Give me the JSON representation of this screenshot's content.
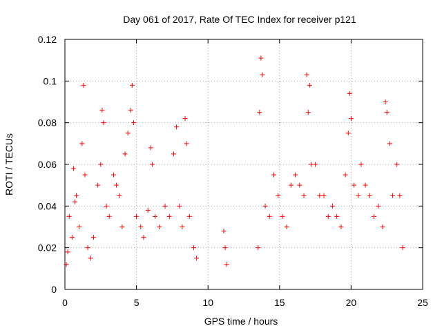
{
  "chart_data": {
    "type": "scatter",
    "title": "Day 061 of 2017, Rate Of TEC Index for receiver p121",
    "xlabel": "GPS time / hours",
    "ylabel": "ROTI / TECUs",
    "xlim": [
      0,
      25
    ],
    "ylim": [
      0,
      0.12
    ],
    "xticks": [
      0,
      5,
      10,
      15,
      20,
      25
    ],
    "yticks": [
      0,
      0.02,
      0.04,
      0.06,
      0.08,
      0.1,
      0.12
    ],
    "xtick_labels": [
      "0",
      "5",
      "10",
      "15",
      "20",
      "25"
    ],
    "ytick_labels": [
      "0",
      "0.02",
      "0.04",
      "0.06",
      "0.08",
      "0.1",
      "0.12"
    ],
    "grid": true,
    "marker": "+",
    "color": "#ff0000",
    "series": [
      {
        "name": "ROTI",
        "points": [
          [
            0.1,
            0.012
          ],
          [
            0.2,
            0.018
          ],
          [
            0.3,
            0.035
          ],
          [
            0.5,
            0.025
          ],
          [
            0.6,
            0.058
          ],
          [
            0.7,
            0.042
          ],
          [
            0.8,
            0.045
          ],
          [
            1.0,
            0.03
          ],
          [
            1.2,
            0.07
          ],
          [
            1.3,
            0.098
          ],
          [
            1.4,
            0.055
          ],
          [
            1.6,
            0.02
          ],
          [
            1.8,
            0.015
          ],
          [
            2.0,
            0.025
          ],
          [
            2.3,
            0.05
          ],
          [
            2.5,
            0.06
          ],
          [
            2.6,
            0.086
          ],
          [
            2.7,
            0.08
          ],
          [
            2.9,
            0.04
          ],
          [
            3.1,
            0.035
          ],
          [
            3.4,
            0.055
          ],
          [
            3.6,
            0.05
          ],
          [
            3.8,
            0.045
          ],
          [
            4.0,
            0.03
          ],
          [
            4.2,
            0.065
          ],
          [
            4.4,
            0.075
          ],
          [
            4.6,
            0.086
          ],
          [
            4.7,
            0.098
          ],
          [
            4.8,
            0.08
          ],
          [
            5.0,
            0.035
          ],
          [
            5.3,
            0.03
          ],
          [
            5.5,
            0.025
          ],
          [
            5.8,
            0.038
          ],
          [
            6.0,
            0.068
          ],
          [
            6.1,
            0.06
          ],
          [
            6.3,
            0.035
          ],
          [
            6.6,
            0.03
          ],
          [
            7.0,
            0.04
          ],
          [
            7.3,
            0.035
          ],
          [
            7.6,
            0.065
          ],
          [
            7.8,
            0.078
          ],
          [
            8.0,
            0.04
          ],
          [
            8.2,
            0.03
          ],
          [
            8.4,
            0.082
          ],
          [
            8.5,
            0.07
          ],
          [
            8.7,
            0.035
          ],
          [
            9.0,
            0.02
          ],
          [
            9.2,
            0.015
          ],
          [
            11.1,
            0.028
          ],
          [
            11.2,
            0.02
          ],
          [
            11.3,
            0.012
          ],
          [
            13.5,
            0.02
          ],
          [
            13.6,
            0.085
          ],
          [
            13.7,
            0.111
          ],
          [
            13.8,
            0.103
          ],
          [
            14.0,
            0.04
          ],
          [
            14.3,
            0.035
          ],
          [
            14.6,
            0.055
          ],
          [
            14.9,
            0.045
          ],
          [
            15.2,
            0.035
          ],
          [
            15.5,
            0.03
          ],
          [
            15.8,
            0.05
          ],
          [
            16.1,
            0.055
          ],
          [
            16.4,
            0.05
          ],
          [
            16.7,
            0.045
          ],
          [
            16.9,
            0.103
          ],
          [
            17.0,
            0.085
          ],
          [
            17.1,
            0.098
          ],
          [
            17.2,
            0.06
          ],
          [
            17.5,
            0.06
          ],
          [
            17.8,
            0.045
          ],
          [
            18.1,
            0.045
          ],
          [
            18.4,
            0.035
          ],
          [
            18.7,
            0.04
          ],
          [
            19.0,
            0.035
          ],
          [
            19.3,
            0.03
          ],
          [
            19.6,
            0.055
          ],
          [
            19.8,
            0.075
          ],
          [
            19.9,
            0.094
          ],
          [
            20.0,
            0.082
          ],
          [
            20.2,
            0.05
          ],
          [
            20.5,
            0.045
          ],
          [
            20.7,
            0.06
          ],
          [
            21.0,
            0.05
          ],
          [
            21.3,
            0.045
          ],
          [
            21.6,
            0.035
          ],
          [
            21.9,
            0.04
          ],
          [
            22.2,
            0.03
          ],
          [
            22.4,
            0.09
          ],
          [
            22.5,
            0.085
          ],
          [
            22.7,
            0.07
          ],
          [
            22.9,
            0.045
          ],
          [
            23.2,
            0.06
          ],
          [
            23.4,
            0.045
          ],
          [
            23.6,
            0.02
          ]
        ]
      }
    ]
  }
}
